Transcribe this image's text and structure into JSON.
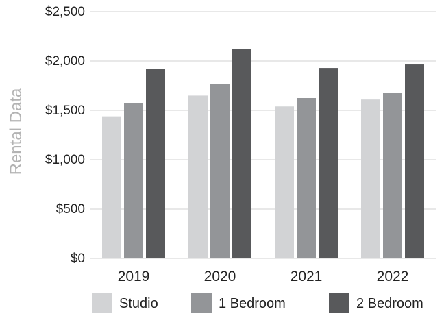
{
  "chart_data": {
    "type": "bar",
    "title": "",
    "xlabel": "",
    "ylabel": "Rental Data",
    "categories": [
      "2019",
      "2020",
      "2021",
      "2022"
    ],
    "series": [
      {
        "name": "Studio",
        "color": "#d2d3d5",
        "values": [
          1440,
          1650,
          1540,
          1610
        ]
      },
      {
        "name": "1 Bedroom",
        "color": "#939598",
        "values": [
          1575,
          1765,
          1625,
          1675
        ]
      },
      {
        "name": "2 Bedroom",
        "color": "#58595b",
        "values": [
          1920,
          2120,
          1930,
          1965
        ]
      }
    ],
    "ylim": [
      0,
      2500
    ],
    "yticks": [
      0,
      500,
      1000,
      1500,
      2000,
      2500
    ],
    "ytick_labels": [
      "$0",
      "$500",
      "$1,000",
      "$1,500",
      "$2,000",
      "$2,500"
    ],
    "grid": true,
    "legend_position": "bottom"
  }
}
